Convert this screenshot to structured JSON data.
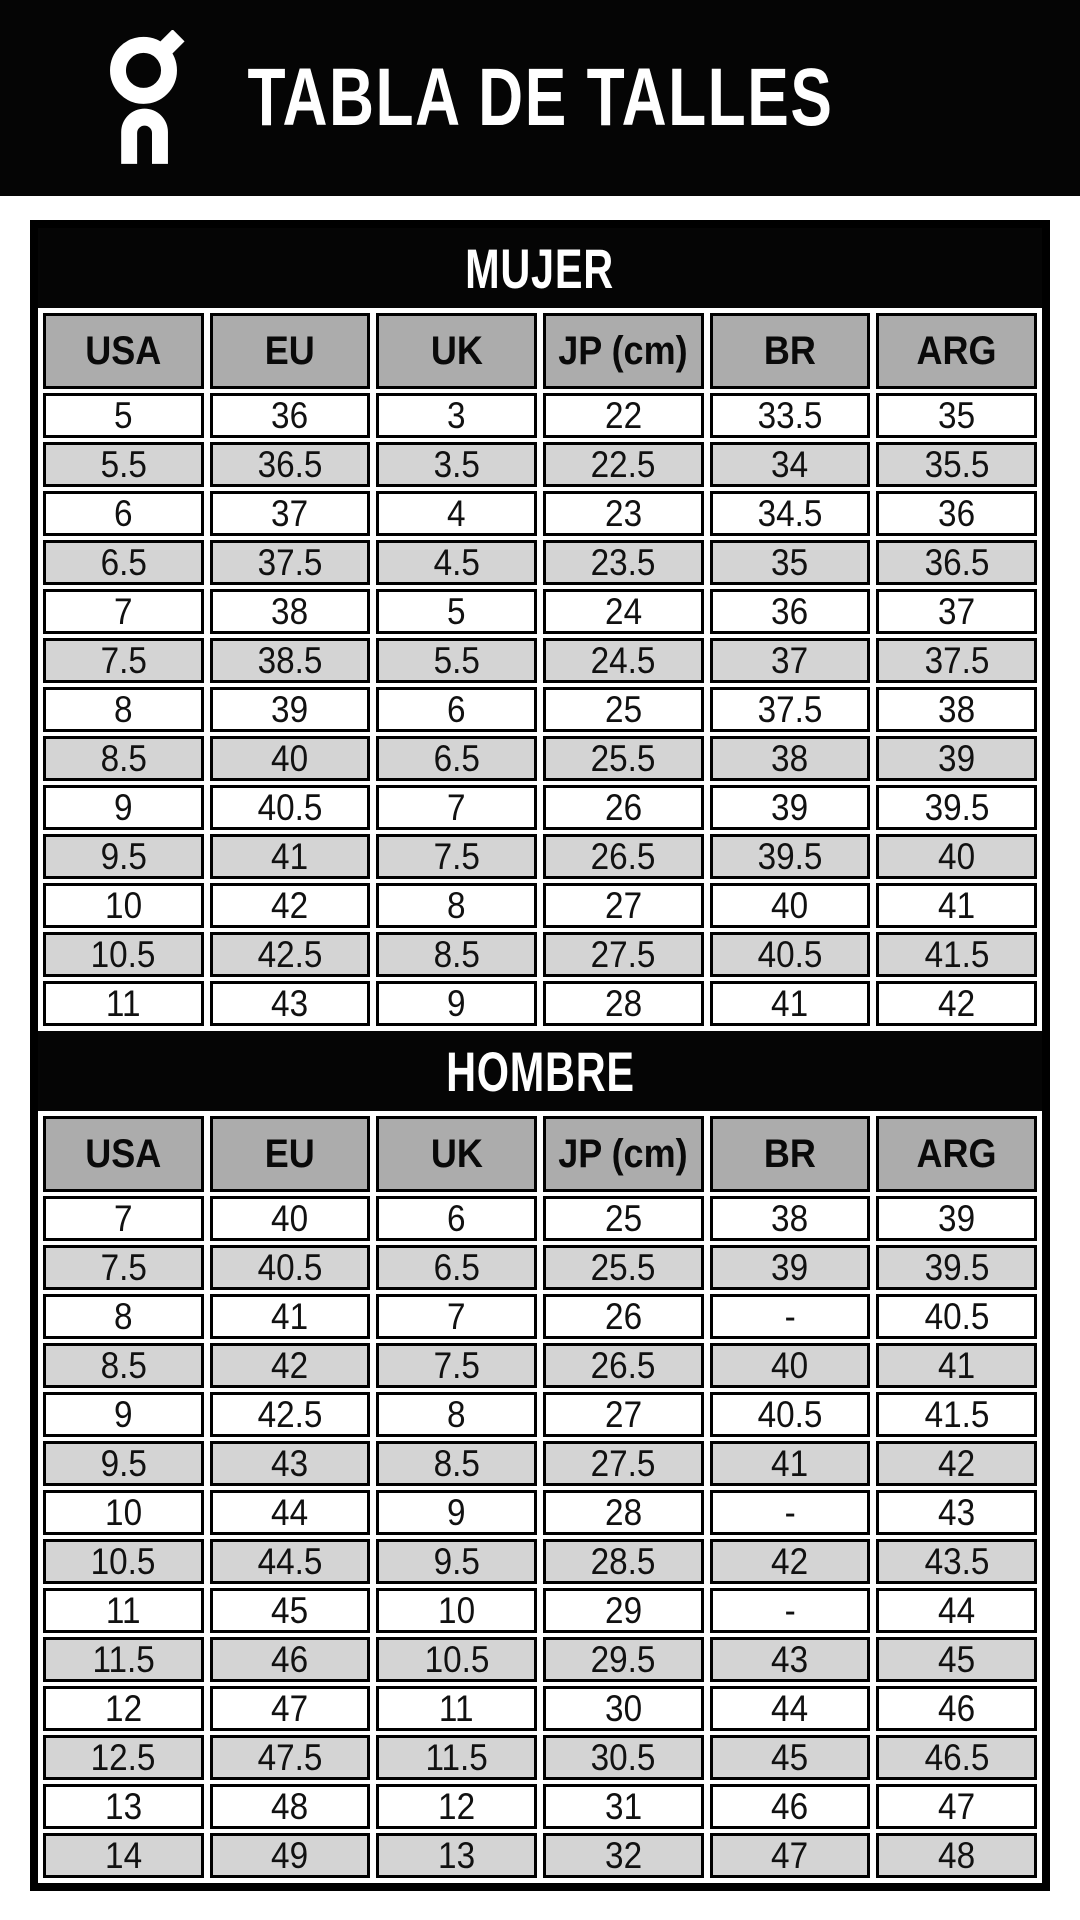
{
  "header": {
    "title": "TABLA DE TALLES",
    "logo": "on-logo-icon"
  },
  "colors": {
    "banner_bg": "#050505",
    "banner_text": "#ffffff",
    "header_cell_bg": "#acacac",
    "row_bg": "#ffffff",
    "row_alt_bg": "#d4d4d4",
    "border": "#000000"
  },
  "chart_data": [
    {
      "type": "table",
      "title": "MUJER",
      "columns": [
        "USA",
        "EU",
        "UK",
        "JP (cm)",
        "BR",
        "ARG"
      ],
      "rows": [
        [
          "5",
          "36",
          "3",
          "22",
          "33.5",
          "35"
        ],
        [
          "5.5",
          "36.5",
          "3.5",
          "22.5",
          "34",
          "35.5"
        ],
        [
          "6",
          "37",
          "4",
          "23",
          "34.5",
          "36"
        ],
        [
          "6.5",
          "37.5",
          "4.5",
          "23.5",
          "35",
          "36.5"
        ],
        [
          "7",
          "38",
          "5",
          "24",
          "36",
          "37"
        ],
        [
          "7.5",
          "38.5",
          "5.5",
          "24.5",
          "37",
          "37.5"
        ],
        [
          "8",
          "39",
          "6",
          "25",
          "37.5",
          "38"
        ],
        [
          "8.5",
          "40",
          "6.5",
          "25.5",
          "38",
          "39"
        ],
        [
          "9",
          "40.5",
          "7",
          "26",
          "39",
          "39.5"
        ],
        [
          "9.5",
          "41",
          "7.5",
          "26.5",
          "39.5",
          "40"
        ],
        [
          "10",
          "42",
          "8",
          "27",
          "40",
          "41"
        ],
        [
          "10.5",
          "42.5",
          "8.5",
          "27.5",
          "40.5",
          "41.5"
        ],
        [
          "11",
          "43",
          "9",
          "28",
          "41",
          "42"
        ]
      ]
    },
    {
      "type": "table",
      "title": "HOMBRE",
      "columns": [
        "USA",
        "EU",
        "UK",
        "JP (cm)",
        "BR",
        "ARG"
      ],
      "rows": [
        [
          "7",
          "40",
          "6",
          "25",
          "38",
          "39"
        ],
        [
          "7.5",
          "40.5",
          "6.5",
          "25.5",
          "39",
          "39.5"
        ],
        [
          "8",
          "41",
          "7",
          "26",
          "-",
          "40.5"
        ],
        [
          "8.5",
          "42",
          "7.5",
          "26.5",
          "40",
          "41"
        ],
        [
          "9",
          "42.5",
          "8",
          "27",
          "40.5",
          "41.5"
        ],
        [
          "9.5",
          "43",
          "8.5",
          "27.5",
          "41",
          "42"
        ],
        [
          "10",
          "44",
          "9",
          "28",
          "-",
          "43"
        ],
        [
          "10.5",
          "44.5",
          "9.5",
          "28.5",
          "42",
          "43.5"
        ],
        [
          "11",
          "45",
          "10",
          "29",
          "-",
          "44"
        ],
        [
          "11.5",
          "46",
          "10.5",
          "29.5",
          "43",
          "45"
        ],
        [
          "12",
          "47",
          "11",
          "30",
          "44",
          "46"
        ],
        [
          "12.5",
          "47.5",
          "11.5",
          "30.5",
          "45",
          "46.5"
        ],
        [
          "13",
          "48",
          "12",
          "31",
          "46",
          "47"
        ],
        [
          "14",
          "49",
          "13",
          "32",
          "47",
          "48"
        ]
      ]
    }
  ]
}
